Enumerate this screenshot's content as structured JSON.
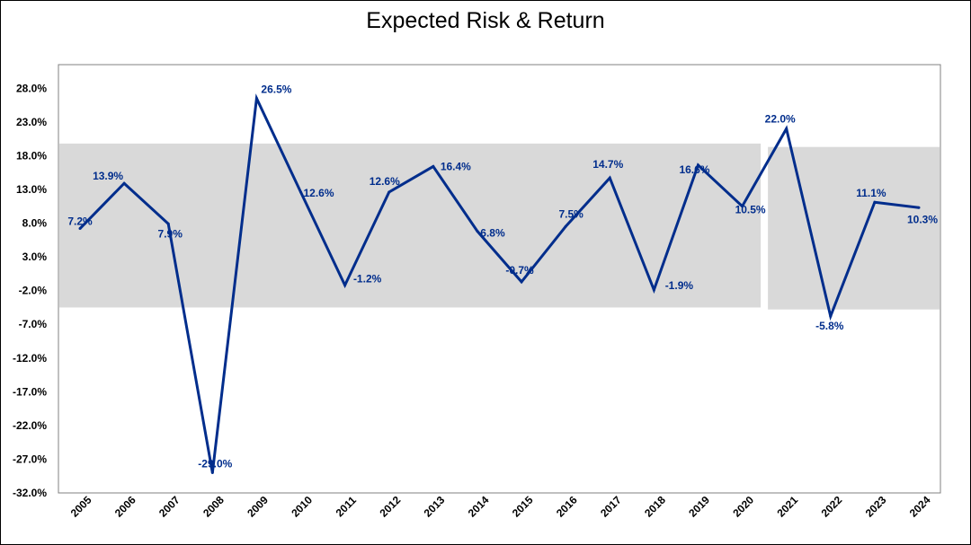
{
  "chart_data": {
    "type": "line",
    "title": "Expected Risk & Return",
    "xlabel": "",
    "ylabel": "",
    "categories": [
      "2005",
      "2006",
      "2007",
      "2008",
      "2009",
      "2010",
      "2011",
      "2012",
      "2013",
      "2014",
      "2015",
      "2016",
      "2017",
      "2018",
      "2019",
      "2020",
      "2021",
      "2022",
      "2023",
      "2024"
    ],
    "series": [
      {
        "values": [
          7.2,
          13.9,
          7.9,
          -29.0,
          26.5,
          12.6,
          -1.2,
          12.6,
          16.4,
          6.8,
          -0.7,
          7.5,
          14.7,
          -1.9,
          16.6,
          10.5,
          22.0,
          -5.8,
          11.1,
          10.3
        ],
        "labels": [
          "7.2%",
          "13.9%",
          "7.9%",
          "-29.0%",
          "26.5%",
          "12.6%",
          "-1.2%",
          "12.6%",
          "16.4%",
          "6.8%",
          "-0.7%",
          "7.5%",
          "14.7%",
          "-1.9%",
          "16.6%",
          "10.5%",
          "22.0%",
          "-5.8%",
          "11.1%",
          "10.3%"
        ]
      }
    ],
    "ylim": [
      -32.0,
      31.5
    ],
    "yticks": [
      28.0,
      23.0,
      18.0,
      13.0,
      8.0,
      3.0,
      -2.0,
      -7.0,
      -12.0,
      -17.0,
      -22.0,
      -27.0,
      -32.0
    ],
    "ytick_labels": [
      "28.0%",
      "23.0%",
      "18.0%",
      "13.0%",
      "8.0%",
      "3.0%",
      "-2.0%",
      "-7.0%",
      "-12.0%",
      "-17.0%",
      "-22.0%",
      "-27.0%",
      "-32.0%"
    ],
    "risk_band": [
      {
        "from_year": "2005",
        "to_year": "2020",
        "low": -4.5,
        "high": 19.8
      },
      {
        "from_year": "2021",
        "to_year": "2024",
        "low": -4.8,
        "high": 19.3
      }
    ],
    "grid": false,
    "legend": "none",
    "colors": {
      "line": "#002D8C",
      "label": "#002D8C",
      "band": "#D9D9D9",
      "axis": "#000000"
    }
  }
}
